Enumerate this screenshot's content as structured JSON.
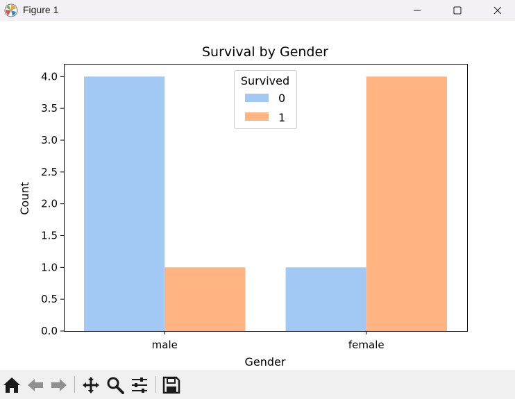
{
  "window": {
    "title": "Figure 1",
    "icon": "matplotlib-logo-icon",
    "controls": [
      "minimize-icon",
      "maximize-icon",
      "close-icon"
    ]
  },
  "toolbar": {
    "buttons": [
      "home-icon",
      "back-arrow-icon",
      "forward-arrow-icon",
      "pan-icon",
      "zoom-icon",
      "configure-subplots-icon",
      "save-icon"
    ]
  },
  "chart_data": {
    "type": "bar",
    "title": "Survival by Gender",
    "xlabel": "Gender",
    "ylabel": "Count",
    "categories": [
      "male",
      "female"
    ],
    "series": [
      {
        "name": "0",
        "values": [
          4,
          1
        ],
        "color": "#a1c9f4"
      },
      {
        "name": "1",
        "values": [
          1,
          4
        ],
        "color": "#ffb482"
      }
    ],
    "ylim": [
      0,
      4.2
    ],
    "yticks": [
      "0.0",
      "0.5",
      "1.0",
      "1.5",
      "2.0",
      "2.5",
      "3.0",
      "3.5",
      "4.0"
    ],
    "legend": {
      "title": "Survived",
      "position": "top-center"
    },
    "grid": false
  }
}
